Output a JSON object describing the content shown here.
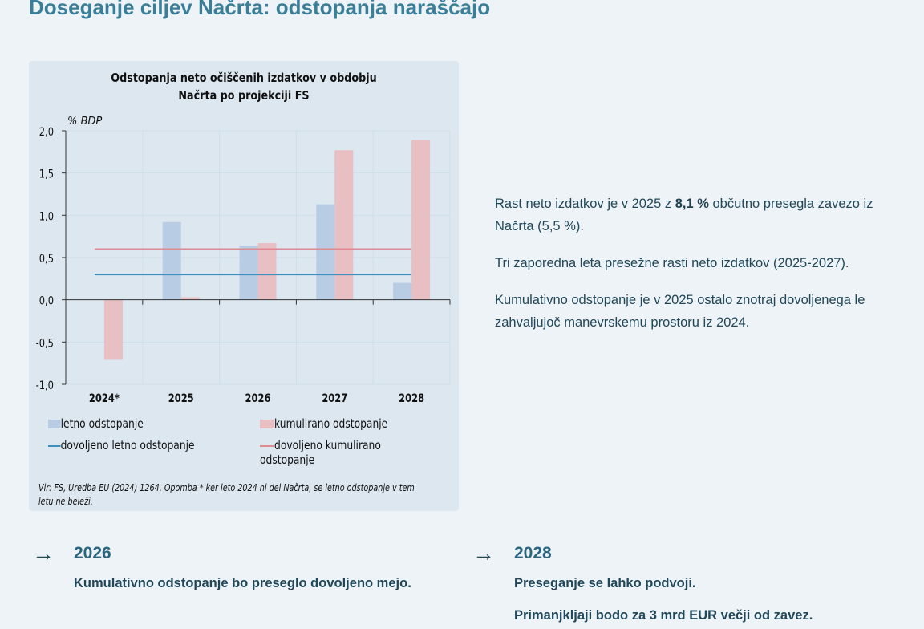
{
  "heading": "Doseganje ciljev Načrta: odstopanja naraščajo",
  "chart_data": {
    "type": "bar",
    "title_line1": "Odstopanja neto očiščenih izdatkov v obdobju",
    "title_line2": "Načrta po projekciji FS",
    "ylabel": "% BDP",
    "ylim": [
      -1.0,
      2.0
    ],
    "yticks": [
      "2,0",
      "1,5",
      "1,0",
      "0,5",
      "0,0",
      "-0,5",
      "-1,0"
    ],
    "ytick_values": [
      2.0,
      1.5,
      1.0,
      0.5,
      0.0,
      -0.5,
      -1.0
    ],
    "categories": [
      "2024*",
      "2025",
      "2026",
      "2027",
      "2028"
    ],
    "series": [
      {
        "name": "letno odstopanje",
        "type": "bar",
        "color": "#b8cde3",
        "values": [
          null,
          0.92,
          0.64,
          1.13,
          0.2
        ]
      },
      {
        "name": "kumulirano odstopanje",
        "type": "bar",
        "color": "#e8bfc2",
        "values": [
          -0.71,
          0.03,
          0.67,
          1.77,
          1.89
        ]
      },
      {
        "name": "dovoljeno letno odstopanje",
        "type": "line",
        "color": "#3f8fbc",
        "value": 0.3
      },
      {
        "name": "dovoljeno kumulirano odstopanje",
        "type": "line",
        "color": "#de8a90",
        "value": 0.6
      }
    ],
    "grid": true,
    "legend": "bottom",
    "source": "Vir: FS, Uredba EU (2024) 1264. Opomba * ker leto 2024 ni del Načrta, se letno odstopanje v tem letu ne beleži."
  },
  "text": {
    "p1_a": "Rast neto izdatkov je v 2025 z ",
    "p1_b": "8,1 %",
    "p1_c": " občutno presegla zavezo iz Načrta (5,5 %).",
    "p2": "Tri zaporedna leta presežne rasti neto izdatkov (2025-2027).",
    "p3": "Kumulativno odstopanje je v 2025 ostalo znotraj dovoljenega le zahvaljujoč manevrskemu prostoru iz 2024."
  },
  "callouts": [
    {
      "arrow": "→",
      "year": "2026",
      "lines": [
        "Kumulativno odstopanje bo preseglo dovoljeno mejo."
      ]
    },
    {
      "arrow": "→",
      "year": "2028",
      "lines": [
        "Preseganje se lahko podvoji.",
        "Primanjkljaji bodo za 3 mrd EUR večji od zavez."
      ]
    }
  ]
}
